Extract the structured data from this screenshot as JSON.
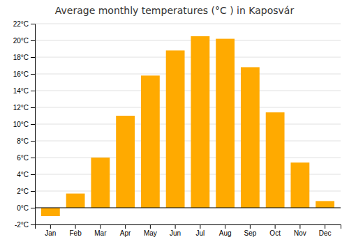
{
  "chart_data": {
    "type": "bar",
    "title": "Average monthly temperatures (°C ) in Kaposvár",
    "categories": [
      "Jan",
      "Feb",
      "Mar",
      "Apr",
      "May",
      "Jun",
      "Jul",
      "Aug",
      "Sep",
      "Oct",
      "Nov",
      "Dec"
    ],
    "values": [
      -1.0,
      1.7,
      6.0,
      11.0,
      15.8,
      18.8,
      20.5,
      20.2,
      16.8,
      11.4,
      5.4,
      0.8
    ],
    "color": "#FFAA00",
    "ylim": [
      -2,
      22
    ],
    "yticks": [
      {
        "value": -2,
        "label": "-2°C"
      },
      {
        "value": 0,
        "label": "0°C"
      },
      {
        "value": 2,
        "label": "2°C"
      },
      {
        "value": 4,
        "label": "4°C"
      },
      {
        "value": 6,
        "label": "6°C"
      },
      {
        "value": 8,
        "label": "8°C"
      },
      {
        "value": 10,
        "label": "10°C"
      },
      {
        "value": 12,
        "label": "12°C"
      },
      {
        "value": 14,
        "label": "14°C"
      },
      {
        "value": 16,
        "label": "16°C"
      },
      {
        "value": 18,
        "label": "18°C"
      },
      {
        "value": 20,
        "label": "20°C"
      },
      {
        "value": 22,
        "label": "22°C"
      }
    ],
    "grid": true
  }
}
